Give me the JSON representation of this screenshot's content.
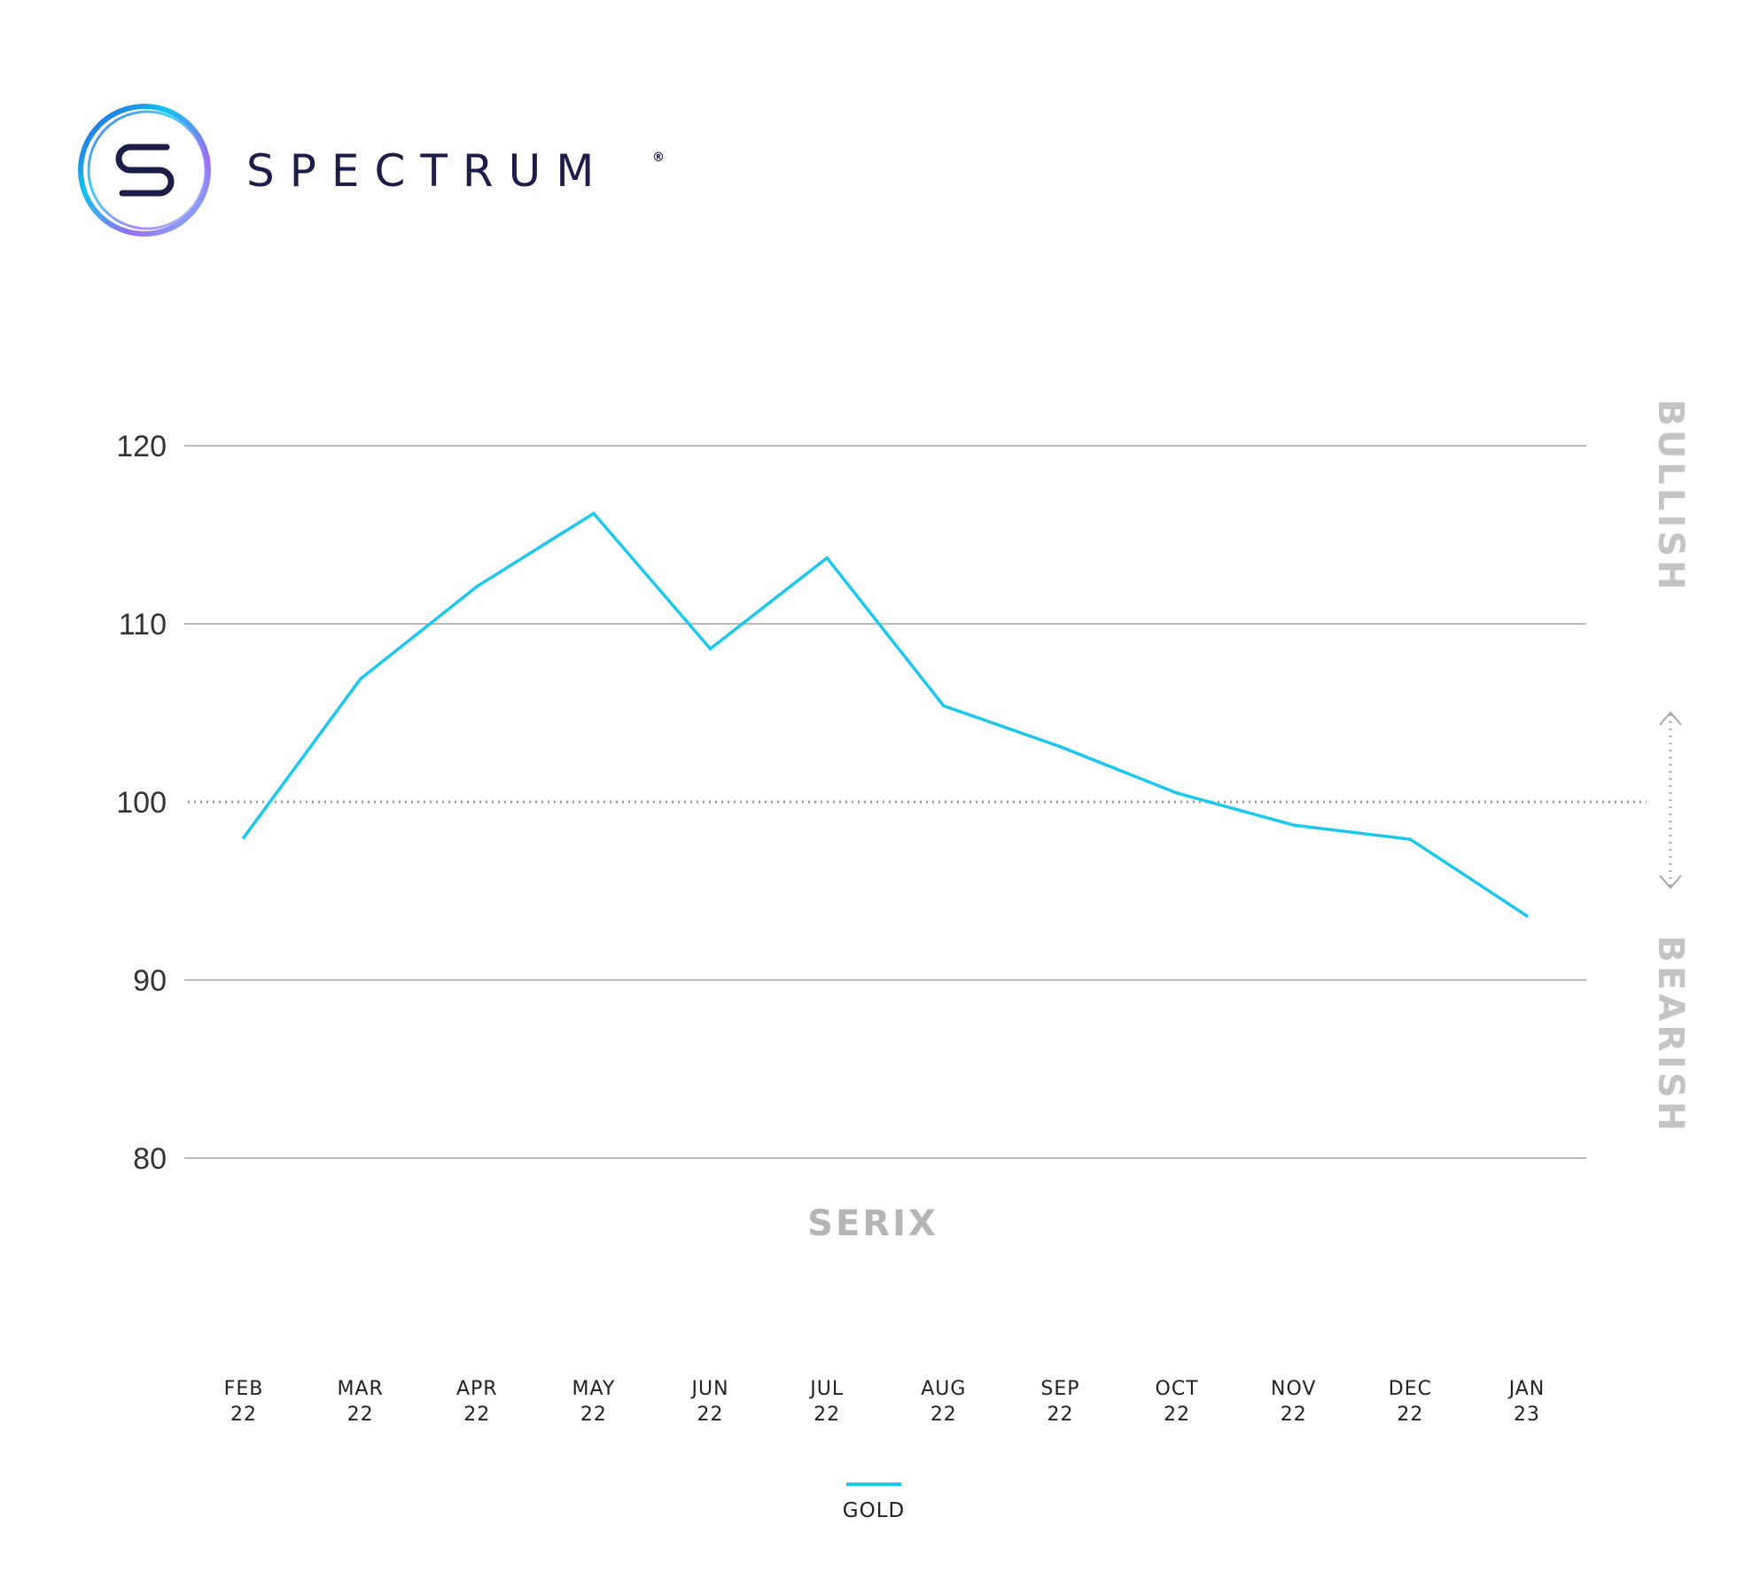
{
  "brand": {
    "name": "SPECTRUM",
    "mark": "®",
    "logo_icon": "spectrum-s-ring-logo",
    "colors": {
      "navy": "#1d1d4a",
      "cyan": "#12c3f0",
      "purple": "#9b6cf3",
      "blue": "#2b55e0"
    }
  },
  "chart_data": {
    "type": "line",
    "title": "",
    "xlabel": "SERIX",
    "ylabel": "",
    "categories": [
      [
        "FEB",
        "22"
      ],
      [
        "MAR",
        "22"
      ],
      [
        "APR",
        "22"
      ],
      [
        "MAY",
        "22"
      ],
      [
        "JUN",
        "22"
      ],
      [
        "JUL",
        "22"
      ],
      [
        "AUG",
        "22"
      ],
      [
        "SEP",
        "22"
      ],
      [
        "OCT",
        "22"
      ],
      [
        "NOV",
        "22"
      ],
      [
        "DEC",
        "22"
      ],
      [
        "JAN",
        "23"
      ]
    ],
    "series": [
      {
        "name": "GOLD",
        "color": "#1cc8ee",
        "values": [
          98.0,
          106.9,
          112.1,
          116.2,
          108.6,
          113.7,
          105.4,
          103.1,
          100.5,
          98.7,
          97.9,
          93.6
        ]
      }
    ],
    "ylim": [
      80,
      120
    ],
    "yticks": [
      80,
      90,
      100,
      110,
      120
    ],
    "reference_line": 100,
    "grid": true,
    "legend": "bottom-center",
    "side_labels": {
      "top": "BULLISH",
      "bottom": "BEARISH"
    }
  }
}
